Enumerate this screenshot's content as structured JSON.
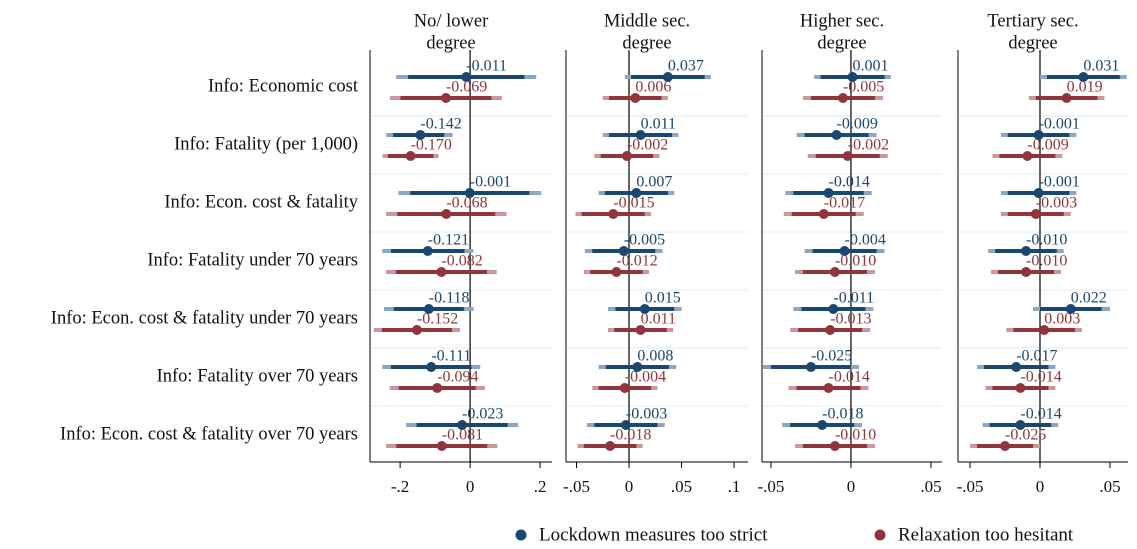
{
  "chart_data": {
    "type": "coefplot",
    "categories": [
      "Info: Economic cost",
      "Info: Fatality (per 1,000)",
      "Info: Econ. cost & fatality",
      "Info: Fatality under 70 years",
      "Info: Econ. cost & fatality under 70 years",
      "Info: Fatality over 70 years",
      "Info: Econ. cost & fatality over 70 years"
    ],
    "legend": [
      {
        "name": "Lockdown measures too strict",
        "color": "#1a476f"
      },
      {
        "name": "Relaxation too hesitant",
        "color": "#90353b"
      }
    ],
    "panels": [
      {
        "title": [
          "No/ lower",
          "degree"
        ],
        "xlim": [
          -0.286,
          0.234
        ],
        "xticks": [
          {
            "value": -0.2,
            "label": "-.2"
          },
          0,
          {
            "value": 0.2,
            "label": ".2"
          }
        ],
        "series": [
          {
            "values": [
              -0.011,
              -0.142,
              -0.001,
              -0.121,
              -0.118,
              -0.111,
              -0.023
            ],
            "value_labels": [
              "-0.011",
              "-0.142",
              "-0.001",
              "-0.121",
              "-0.118",
              "-0.111",
              "-0.023"
            ],
            "ci_inner": [
              [
                -0.177,
                0.155
              ],
              [
                -0.22,
                -0.074
              ],
              [
                -0.171,
                0.169
              ],
              [
                -0.226,
                -0.016
              ],
              [
                -0.218,
                -0.018
              ],
              [
                -0.226,
                0.004
              ],
              [
                -0.153,
                0.107
              ]
            ],
            "ci_outer": [
              [
                -0.211,
                0.189
              ],
              [
                -0.24,
                -0.05
              ],
              [
                -0.205,
                0.203
              ],
              [
                -0.251,
                0.009
              ],
              [
                -0.246,
                0.01
              ],
              [
                -0.251,
                0.029
              ],
              [
                -0.183,
                0.137
              ]
            ]
          },
          {
            "values": [
              -0.069,
              -0.17,
              -0.068,
              -0.082,
              -0.152,
              -0.094,
              -0.081
            ],
            "value_labels": [
              "-0.069",
              "-0.170",
              "-0.068",
              "-0.082",
              "-0.152",
              "-0.094",
              "-0.081"
            ],
            "ci_inner": [
              [
                -0.199,
                0.061
              ],
              [
                -0.235,
                -0.105
              ],
              [
                -0.208,
                0.072
              ],
              [
                -0.212,
                0.048
              ],
              [
                -0.252,
                -0.052
              ],
              [
                -0.204,
                0.016
              ],
              [
                -0.211,
                0.049
              ]
            ],
            "ci_outer": [
              [
                -0.229,
                0.091
              ],
              [
                -0.25,
                -0.09
              ],
              [
                -0.24,
                0.104
              ],
              [
                -0.24,
                0.076
              ],
              [
                -0.275,
                -0.029
              ],
              [
                -0.23,
                0.042
              ],
              [
                -0.24,
                0.078
              ]
            ]
          }
        ]
      },
      {
        "title": [
          "Middle sec.",
          "degree"
        ],
        "xlim": [
          -0.06,
          0.1133
        ],
        "xticks": [
          {
            "value": -0.05,
            "label": "-.05"
          },
          0,
          {
            "value": 0.05,
            "label": ".05"
          },
          {
            "value": 0.1,
            "label": ".1"
          }
        ],
        "series": [
          {
            "values": [
              0.037,
              0.011,
              0.007,
              -0.005,
              0.015,
              0.008,
              -0.003
            ],
            "value_labels": [
              "0.037",
              "0.011",
              "0.007",
              "-0.005",
              "0.015",
              "0.008",
              "-0.003"
            ],
            "ci_inner": [
              [
                0.002,
                0.072
              ],
              [
                -0.019,
                0.041
              ],
              [
                -0.023,
                0.037
              ],
              [
                -0.035,
                0.025
              ],
              [
                -0.013,
                0.043
              ],
              [
                -0.022,
                0.038
              ],
              [
                -0.033,
                0.027
              ]
            ],
            "ci_outer": [
              [
                -0.004,
                0.078
              ],
              [
                -0.025,
                0.047
              ],
              [
                -0.029,
                0.043
              ],
              [
                -0.042,
                0.032
              ],
              [
                -0.02,
                0.05
              ],
              [
                -0.029,
                0.045
              ],
              [
                -0.04,
                0.034
              ]
            ]
          },
          {
            "values": [
              0.006,
              -0.002,
              -0.015,
              -0.012,
              0.011,
              -0.004,
              -0.018
            ],
            "value_labels": [
              "0.006",
              "-0.002",
              "-0.015",
              "-0.012",
              "0.011",
              "-0.004",
              "-0.018"
            ],
            "ci_inner": [
              [
                -0.019,
                0.031
              ],
              [
                -0.027,
                0.023
              ],
              [
                -0.045,
                0.015
              ],
              [
                -0.037,
                0.013
              ],
              [
                -0.014,
                0.036
              ],
              [
                -0.029,
                0.021
              ],
              [
                -0.043,
                0.007
              ]
            ],
            "ci_outer": [
              [
                -0.025,
                0.037
              ],
              [
                -0.033,
                0.029
              ],
              [
                -0.051,
                0.021
              ],
              [
                -0.043,
                0.019
              ],
              [
                -0.02,
                0.042
              ],
              [
                -0.035,
                0.027
              ],
              [
                -0.049,
                0.013
              ]
            ]
          }
        ]
      },
      {
        "title": [
          "Higher sec.",
          "degree"
        ],
        "xlim": [
          -0.0556,
          0.0569
        ],
        "xticks": [
          {
            "value": -0.05,
            "label": "-.05"
          },
          0,
          {
            "value": 0.05,
            "label": ".05"
          }
        ],
        "series": [
          {
            "values": [
              0.001,
              -0.009,
              -0.014,
              -0.004,
              -0.011,
              -0.025,
              -0.018
            ],
            "value_labels": [
              "0.001",
              "-0.009",
              "-0.014",
              "-0.004",
              "-0.011",
              "-0.025",
              "-0.018"
            ],
            "ci_inner": [
              [
                -0.019,
                0.021
              ],
              [
                -0.029,
                0.011
              ],
              [
                -0.036,
                0.008
              ],
              [
                -0.024,
                0.016
              ],
              [
                -0.031,
                0.009
              ],
              [
                -0.05,
                0.0
              ],
              [
                -0.038,
                0.002
              ]
            ],
            "ci_outer": [
              [
                -0.023,
                0.025
              ],
              [
                -0.034,
                0.016
              ],
              [
                -0.041,
                0.013
              ],
              [
                -0.029,
                0.021
              ],
              [
                -0.036,
                0.014
              ],
              [
                -0.055,
                0.005
              ],
              [
                -0.043,
                0.007
              ]
            ]
          },
          {
            "values": [
              -0.005,
              -0.002,
              -0.017,
              -0.01,
              -0.013,
              -0.014,
              -0.01
            ],
            "value_labels": [
              "-0.005",
              "-0.002",
              "-0.017",
              "-0.010",
              "-0.013",
              "-0.014",
              "-0.010"
            ],
            "ci_inner": [
              [
                -0.025,
                0.015
              ],
              [
                -0.022,
                0.018
              ],
              [
                -0.037,
                0.003
              ],
              [
                -0.03,
                0.01
              ],
              [
                -0.033,
                0.007
              ],
              [
                -0.034,
                0.006
              ],
              [
                -0.03,
                0.01
              ]
            ],
            "ci_outer": [
              [
                -0.03,
                0.02
              ],
              [
                -0.027,
                0.023
              ],
              [
                -0.042,
                0.008
              ],
              [
                -0.035,
                0.015
              ],
              [
                -0.038,
                0.012
              ],
              [
                -0.039,
                0.011
              ],
              [
                -0.035,
                0.015
              ]
            ]
          }
        ]
      },
      {
        "title": [
          "Tertiary sec.",
          "degree"
        ],
        "xlim": [
          -0.0586,
          0.0629
        ],
        "xticks": [
          {
            "value": -0.05,
            "label": "-.05"
          },
          0,
          {
            "value": 0.05,
            "label": ".05"
          }
        ],
        "series": [
          {
            "values": [
              0.031,
              -0.001,
              -0.001,
              -0.01,
              0.022,
              -0.017,
              -0.014
            ],
            "value_labels": [
              "0.031",
              "-0.001",
              "-0.001",
              "-0.010",
              "0.022",
              "-0.017",
              "-0.014"
            ],
            "ci_inner": [
              [
                0.005,
                0.057
              ],
              [
                -0.023,
                0.021
              ],
              [
                -0.023,
                0.021
              ],
              [
                -0.032,
                0.012
              ],
              [
                0.0,
                0.044
              ],
              [
                -0.04,
                0.006
              ],
              [
                -0.036,
                0.008
              ]
            ],
            "ci_outer": [
              [
                0.0,
                0.062
              ],
              [
                -0.028,
                0.026
              ],
              [
                -0.028,
                0.026
              ],
              [
                -0.037,
                0.017
              ],
              [
                -0.005,
                0.05
              ],
              [
                -0.045,
                0.011
              ],
              [
                -0.041,
                0.013
              ]
            ]
          },
          {
            "values": [
              0.019,
              -0.009,
              -0.003,
              -0.01,
              0.003,
              -0.014,
              -0.025
            ],
            "value_labels": [
              "0.019",
              "-0.009",
              "-0.003",
              "-0.010",
              "0.003",
              "-0.014",
              "-0.025"
            ],
            "ci_inner": [
              [
                -0.003,
                0.041
              ],
              [
                -0.029,
                0.011
              ],
              [
                -0.023,
                0.017
              ],
              [
                -0.03,
                0.01
              ],
              [
                -0.019,
                0.025
              ],
              [
                -0.034,
                0.006
              ],
              [
                -0.045,
                -0.005
              ]
            ],
            "ci_outer": [
              [
                -0.008,
                0.046
              ],
              [
                -0.034,
                0.016
              ],
              [
                -0.028,
                0.022
              ],
              [
                -0.035,
                0.015
              ],
              [
                -0.024,
                0.03
              ],
              [
                -0.039,
                0.011
              ],
              [
                -0.05,
                0.0
              ]
            ]
          }
        ]
      }
    ]
  }
}
